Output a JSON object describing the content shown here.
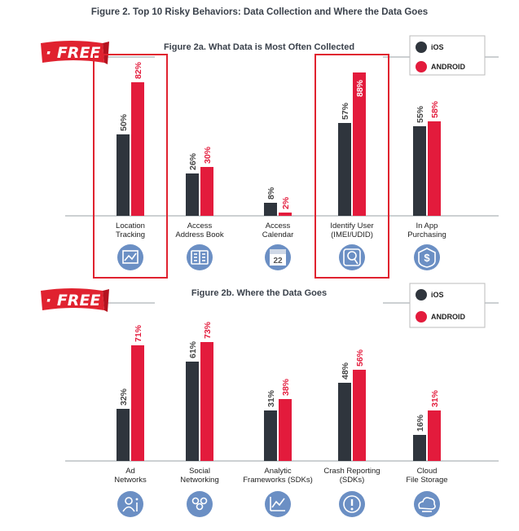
{
  "main_title": "Figure 2. Top 10 Risky Behaviors: Data Collection and Where the Data Goes",
  "colors": {
    "ios": "#2f353d",
    "android": "#e31b3c",
    "icon": "#6b8fc4",
    "highlight": "#e0222f",
    "grid": "#9aa0a6"
  },
  "badge_text": "· FREE",
  "chart_data": [
    {
      "type": "bar",
      "title": "Figure 2a. What Data is Most Often Collected",
      "categories": [
        [
          "Location",
          "Tracking"
        ],
        [
          "Access",
          "Address Book"
        ],
        [
          "Access",
          "Calendar"
        ],
        [
          "Identify User",
          "(IMEI/UDID)"
        ],
        [
          "In App",
          "Purchasing"
        ]
      ],
      "icons": [
        "map-icon",
        "address-book-icon",
        "calendar-icon",
        "identify-user-icon",
        "dollar-icon"
      ],
      "calendar_icon_text": "22",
      "series": [
        {
          "name": "iOS",
          "values": [
            50,
            26,
            8,
            57,
            55
          ]
        },
        {
          "name": "ANDROID",
          "values": [
            82,
            30,
            2,
            88,
            58
          ]
        }
      ],
      "highlighted": [
        0,
        3
      ],
      "ylim": [
        0,
        100
      ],
      "legend": "top-right"
    },
    {
      "type": "bar",
      "title": "Figure 2b. Where the Data Goes",
      "categories": [
        [
          "Ad",
          "Networks"
        ],
        [
          "Social",
          "Networking"
        ],
        [
          "Analytic",
          "Frameworks (SDKs)"
        ],
        [
          "Crash Reporting",
          "(SDKs)"
        ],
        [
          "Cloud",
          "File Storage"
        ]
      ],
      "icons": [
        "info-user-icon",
        "people-icon",
        "chart-icon",
        "alert-icon",
        "cloud-icon"
      ],
      "series": [
        {
          "name": "iOS",
          "values": [
            32,
            61,
            31,
            48,
            16
          ]
        },
        {
          "name": "ANDROID",
          "values": [
            71,
            73,
            38,
            56,
            31
          ]
        }
      ],
      "highlighted": [],
      "ylim": [
        0,
        100
      ],
      "legend": "top-right"
    }
  ]
}
